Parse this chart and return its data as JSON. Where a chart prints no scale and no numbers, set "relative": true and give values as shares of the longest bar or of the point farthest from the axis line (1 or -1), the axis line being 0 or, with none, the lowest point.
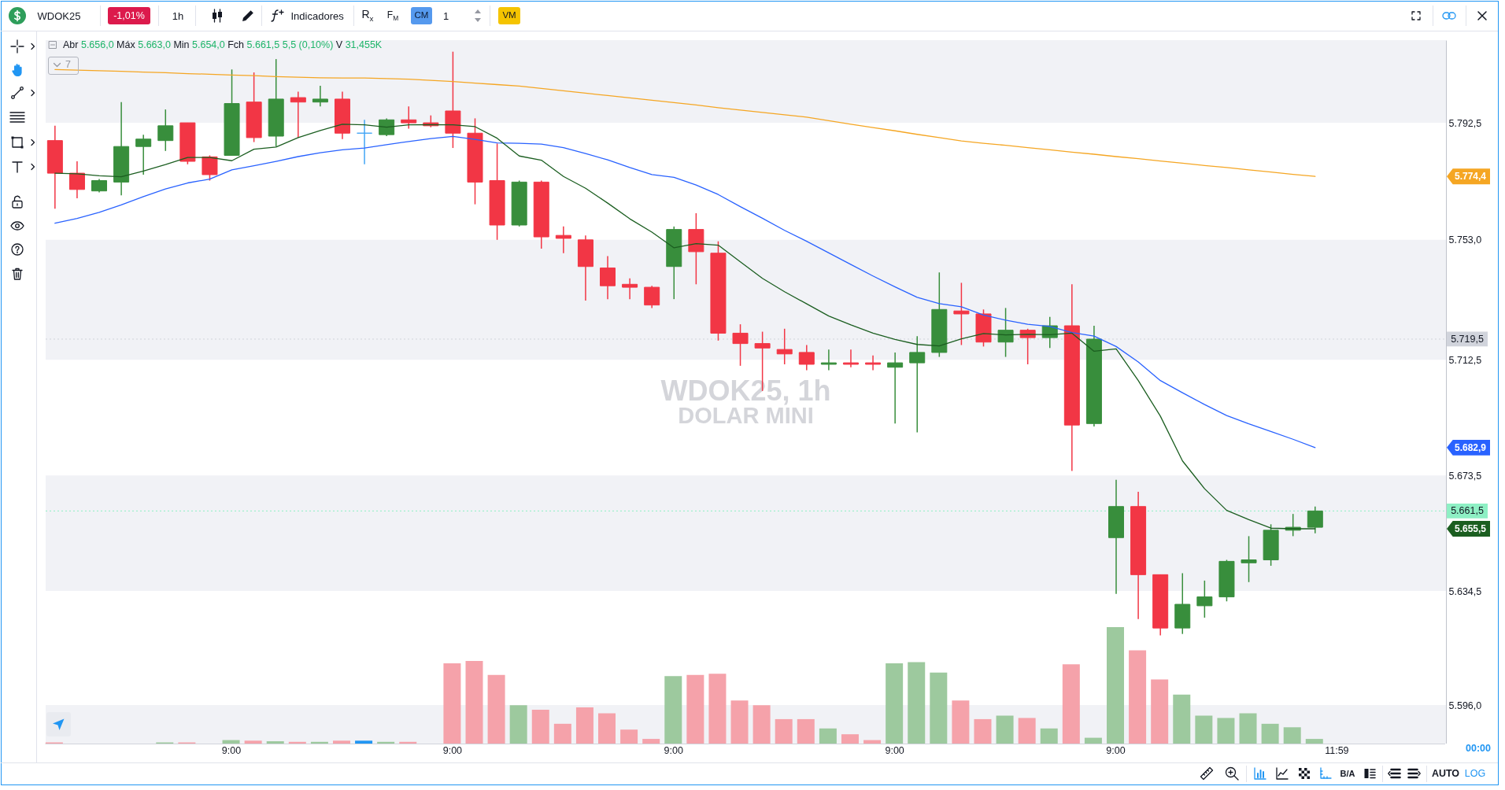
{
  "chart_data": [
    {
      "type": "candlestick",
      "title": "WDOK25, 1h",
      "subtitle": "DOLAR MINI",
      "categories": [
        null,
        null,
        null,
        null,
        null,
        null,
        null,
        null,
        null,
        null,
        null,
        null,
        null,
        null,
        null,
        null,
        null,
        null,
        null,
        null,
        null,
        null,
        null,
        null,
        null,
        null,
        null,
        null,
        null,
        null,
        null,
        null,
        null,
        null,
        null,
        null,
        null,
        null,
        null,
        null,
        null,
        null,
        null,
        null,
        null,
        null,
        null,
        null,
        null,
        null,
        null,
        null,
        null,
        null,
        null,
        null,
        null,
        null,
        null
      ],
      "ohlc": [
        [
          5786.5,
          5791.5,
          5763.5,
          5775.5
        ],
        [
          5775.5,
          5779.5,
          5767,
          5770
        ],
        [
          5769.5,
          5773.5,
          5769,
          5773
        ],
        [
          5772.5,
          5799.5,
          5768,
          5784.5
        ],
        [
          5784.5,
          5788.5,
          5775,
          5787
        ],
        [
          5786.5,
          5797,
          5783,
          5791.5
        ],
        [
          5792.5,
          5792.5,
          5778.5,
          5779.5
        ],
        [
          5781,
          5781.5,
          5773,
          5775
        ],
        [
          5781.5,
          5810.5,
          5781.5,
          5799
        ],
        [
          5799.5,
          5809.5,
          5786,
          5787.5
        ],
        [
          5788,
          5814,
          5784.5,
          5800.5
        ],
        [
          5801,
          5803,
          5787.5,
          5799.5
        ],
        [
          5799.5,
          5805,
          5798,
          5800.5
        ],
        [
          5800.5,
          5803,
          5787,
          5789
        ],
        [
          5789,
          5793.5,
          5778.5,
          5789
        ],
        [
          5788.5,
          5794,
          5788,
          5793.5
        ],
        [
          5793.5,
          5798,
          5790.5,
          5792.5
        ],
        [
          5792.5,
          5795,
          5791,
          5791.5
        ],
        [
          5796.5,
          5816.5,
          5784,
          5789
        ],
        [
          5789,
          5794,
          5765,
          5772.5
        ],
        [
          5773,
          5785.5,
          5753,
          5758
        ],
        [
          5758,
          5773,
          5757.5,
          5772.5
        ],
        [
          5772.5,
          5773,
          5750,
          5754
        ],
        [
          5754.5,
          5757.5,
          5748.5,
          5753.5
        ],
        [
          5753,
          5754.5,
          5732.5,
          5744
        ],
        [
          5743.5,
          5747.5,
          5733,
          5737.5
        ],
        [
          5738,
          5740,
          5733,
          5737
        ],
        [
          5737,
          5737.5,
          5730,
          5731
        ],
        [
          5744,
          5757.5,
          5733,
          5756.5
        ],
        [
          5756.5,
          5762,
          5738,
          5749
        ],
        [
          5748.5,
          5752.5,
          5719,
          5721.5
        ],
        [
          5721.5,
          5724.5,
          5710.5,
          5718
        ],
        [
          5718,
          5722,
          5702,
          5716.5
        ],
        [
          5716,
          5723,
          5711,
          5714.5
        ],
        [
          5715,
          5717.5,
          5709,
          5711
        ],
        [
          5711,
          5716,
          5709,
          5711.5
        ],
        [
          5711.5,
          5716,
          5710,
          5711
        ],
        [
          5711.5,
          5714,
          5709,
          5711
        ],
        [
          5710,
          5715,
          5691,
          5711.5
        ],
        [
          5711.5,
          5720.5,
          5688,
          5715
        ],
        [
          5715,
          5742,
          5713.5,
          5729.5
        ],
        [
          5729,
          5738.5,
          5717.5,
          5728
        ],
        [
          5728,
          5729.5,
          5717,
          5718.5
        ],
        [
          5718.5,
          5730,
          5713.5,
          5722.5
        ],
        [
          5722.5,
          5723,
          5711,
          5720
        ],
        [
          5720,
          5727,
          5716.5,
          5724
        ],
        [
          5724,
          5738,
          5675,
          5690.5
        ],
        [
          5691,
          5724,
          5690,
          5719.5
        ],
        [
          5652.5,
          5672,
          5633.5,
          5663
        ],
        [
          5663,
          5668,
          5625,
          5640
        ],
        [
          5640,
          5640,
          5619.5,
          5622
        ],
        [
          5622,
          5640.5,
          5620,
          5630
        ],
        [
          5629.5,
          5638,
          5625.5,
          5632.5
        ],
        [
          5632.5,
          5645,
          5631,
          5644.5
        ],
        [
          5644,
          5653,
          5637.5,
          5645
        ],
        [
          5645,
          5657,
          5643,
          5655
        ],
        [
          5655,
          5660.5,
          5653,
          5656
        ],
        [
          5656,
          5663,
          5654,
          5661.5
        ],
        null
      ],
      "colors": [
        "#f23645",
        "#f23645",
        "#388e3c",
        "#388e3c",
        "#388e3c",
        "#388e3c",
        "#f23645",
        "#f23645",
        "#388e3c",
        "#f23645",
        "#388e3c",
        "#f23645",
        "#388e3c",
        "#f23645",
        "#42a5f5",
        "#388e3c",
        "#f23645",
        "#f23645",
        "#f23645",
        "#f23645",
        "#f23645",
        "#388e3c",
        "#f23645",
        "#f23645",
        "#f23645",
        "#f23645",
        "#f23645",
        "#f23645",
        "#388e3c",
        "#f23645",
        "#f23645",
        "#f23645",
        "#f23645",
        "#f23645",
        "#f23645",
        "#388e3c",
        "#f23645",
        "#f23645",
        "#388e3c",
        "#388e3c",
        "#388e3c",
        "#f23645",
        "#f23645",
        "#388e3c",
        "#f23645",
        "#388e3c",
        "#f23645",
        "#388e3c",
        "#388e3c",
        "#f23645",
        "#f23645",
        "#388e3c",
        "#388e3c",
        "#388e3c",
        "#388e3c",
        "#388e3c",
        "#388e3c",
        "#388e3c",
        null
      ],
      "series": [
        {
          "type": "line",
          "color": "#f5a623",
          "values": [
            5810.5,
            5810.3,
            5810.1,
            5809.9,
            5809.6,
            5809.4,
            5809.1,
            5808.9,
            5808.6,
            5808.4,
            5808.1,
            5807.9,
            5807.7,
            5807.6,
            5807.6,
            5807.4,
            5807.2,
            5806.8,
            5806.4,
            5805.9,
            5805.4,
            5804.9,
            5804.1,
            5803.3,
            5802.5,
            5801.7,
            5800.9,
            5800.1,
            5799.3,
            5798.5,
            5797.6,
            5796.8,
            5796.0,
            5795.2,
            5794.4,
            5793.2,
            5792.0,
            5790.9,
            5789.8,
            5788.6,
            5787.5,
            5786.4,
            5785.6,
            5784.9,
            5784.1,
            5783.4,
            5782.6,
            5781.9,
            5781.1,
            5780.4,
            5779.6,
            5778.9,
            5778.1,
            5777.4,
            5776.6,
            5775.9,
            5775.1,
            5774.4,
            null
          ]
        },
        {
          "type": "line",
          "color": "#2962ff",
          "values": [
            5758.6,
            5760.2,
            5762.3,
            5764.8,
            5767.6,
            5770.2,
            5772.2,
            5773.5,
            5776.6,
            5778.0,
            5779.5,
            5781.1,
            5782.4,
            5783.4,
            5784.0,
            5785.1,
            5786.2,
            5787.2,
            5787.9,
            5786.9,
            5785.7,
            5785.6,
            5785.3,
            5784.1,
            5782.1,
            5780.0,
            5777.4,
            5775.0,
            5774.1,
            5771.5,
            5768.3,
            5764.2,
            5760.3,
            5756.2,
            5752.5,
            5748.6,
            5744.7,
            5740.8,
            5737.1,
            5733.6,
            5731.5,
            5730.4,
            5727.6,
            5725.9,
            5724.5,
            5723.8,
            5721.7,
            5720.5,
            5717.0,
            5711.8,
            5705.5,
            5701.4,
            5697.4,
            5693.7,
            5690.9,
            5688.3,
            5685.7,
            5682.9,
            null
          ]
        },
        {
          "type": "line",
          "color": "#1b5e20",
          "values": [
            5775.5,
            5775.3,
            5774.6,
            5774.3,
            5776.2,
            5778.4,
            5780.8,
            5780.8,
            5779.7,
            5783.6,
            5784.3,
            5787.5,
            5789.9,
            5792.0,
            5791.8,
            5791.0,
            5791.8,
            5791.9,
            5791.8,
            5791.2,
            5787.3,
            5781.3,
            5779.9,
            5774.4,
            5770.4,
            5765.4,
            5760.1,
            5755.6,
            5750.3,
            5751.7,
            5751.2,
            5745.6,
            5740.0,
            5735.5,
            5731.4,
            5727.3,
            5724.3,
            5721.5,
            5719.4,
            5717.7,
            5717.2,
            5719.6,
            5721.4,
            5720.9,
            5721.1,
            5721.0,
            5721.5,
            5715.4,
            5716.2,
            5705.5,
            5693.5,
            5678.4,
            5669.0,
            5661.7,
            5658.6,
            5655.7,
            5655.5,
            5655.5,
            null
          ]
        }
      ],
      "ylim": [
        5583,
        5820.4
      ],
      "yticks": [
        {
          "value": 5596,
          "label": "5.596,0"
        },
        {
          "value": 5634.5,
          "label": "5.634,5"
        },
        {
          "value": 5673.5,
          "label": "5.673,5"
        },
        {
          "value": 5712.5,
          "label": "5.712,5"
        },
        {
          "value": 5753,
          "label": "5.753,0"
        },
        {
          "value": 5792.5,
          "label": "5.792,5"
        }
      ],
      "bands": [
        {
          "axis": "y",
          "from": 5792.5,
          "to": 5820.4,
          "color": "#f1f2f6"
        },
        {
          "axis": "y",
          "from": 5712.5,
          "to": 5753,
          "color": "#f1f2f6"
        },
        {
          "axis": "y",
          "from": 5634.5,
          "to": 5673.5,
          "color": "#f1f2f6"
        },
        {
          "axis": "y",
          "from": 5583,
          "to": 5596,
          "color": "#f1f2f6"
        }
      ],
      "ref_lines": [
        {
          "axis": "y",
          "value": 5719.5,
          "label": "5.719,5",
          "color": "#d1d4dc",
          "line_style": "dotted"
        },
        {
          "axis": "y",
          "value": 5661.5,
          "label": "5.661,5",
          "color": "#8ef0c4",
          "line_style": "dotted"
        }
      ],
      "annotations": [
        "Abr 5.656,0 Máx 5.663,0 Min 5.654,0 Fch 5.661,5 5,5 (0,10%) V 31,455K",
        "7",
        "WDOK25",
        "-1,01%",
        "1h",
        "Indicadores",
        "R$_{x}$",
        "F$_{M}$",
        "CM",
        "1",
        "VM",
        "B/A",
        "AUTO",
        "LOG",
        "00:00",
        "5.774,4",
        "5.682,9",
        "5.655,5"
      ]
    },
    {
      "type": "bar",
      "relative": true,
      "categories": [
        null,
        null,
        null,
        null,
        null,
        null,
        null,
        null,
        "9:00",
        null,
        null,
        null,
        null,
        null,
        null,
        null,
        null,
        null,
        "9:00",
        null,
        null,
        null,
        null,
        null,
        null,
        null,
        null,
        null,
        "9:00",
        null,
        null,
        null,
        null,
        null,
        null,
        null,
        null,
        null,
        "9:00",
        null,
        null,
        null,
        null,
        null,
        null,
        null,
        null,
        null,
        "9:00",
        null,
        null,
        null,
        null,
        null,
        null,
        null,
        null,
        null,
        "11:59"
      ],
      "values": [
        0.01,
        null,
        null,
        null,
        null,
        0.01,
        0.01,
        null,
        0.03,
        0.025,
        0.02,
        0.015,
        0.015,
        0.025,
        0.025,
        0.015,
        0.015,
        null,
        0.69,
        0.71,
        0.59,
        0.33,
        0.29,
        0.17,
        0.31,
        0.26,
        0.12,
        0.04,
        0.58,
        0.59,
        0.6,
        0.37,
        0.33,
        0.21,
        0.21,
        0.13,
        0.08,
        0.03,
        0.69,
        0.7,
        0.61,
        0.37,
        0.21,
        0.24,
        0.22,
        0.13,
        0.68,
        0.05,
        1,
        0.8,
        0.55,
        0.42,
        0.24,
        0.22,
        0.26,
        0.17,
        0.14,
        0.04,
        null
      ],
      "colors": [
        "#f5a2aa",
        null,
        null,
        null,
        null,
        "#9dc99e",
        "#f5a2aa",
        null,
        "#9dc99e",
        "#f5a2aa",
        "#9dc99e",
        "#f5a2aa",
        "#9dc99e",
        "#f5a2aa",
        "#2196f3",
        "#9dc99e",
        "#f5a2aa",
        null,
        "#f5a2aa",
        "#f5a2aa",
        "#f5a2aa",
        "#9dc99e",
        "#f5a2aa",
        "#f5a2aa",
        "#f5a2aa",
        "#f5a2aa",
        "#f5a2aa",
        "#f5a2aa",
        "#9dc99e",
        "#f5a2aa",
        "#f5a2aa",
        "#f5a2aa",
        "#f5a2aa",
        "#f5a2aa",
        "#f5a2aa",
        "#9dc99e",
        "#f5a2aa",
        "#f5a2aa",
        "#9dc99e",
        "#9dc99e",
        "#9dc99e",
        "#f5a2aa",
        "#f5a2aa",
        "#9dc99e",
        "#f5a2aa",
        "#9dc99e",
        "#f5a2aa",
        "#9dc99e",
        "#9dc99e",
        "#f5a2aa",
        "#f5a2aa",
        "#9dc99e",
        "#9dc99e",
        "#9dc99e",
        "#9dc99e",
        "#9dc99e",
        "#9dc99e",
        "#9dc99e",
        null
      ]
    }
  ]
}
